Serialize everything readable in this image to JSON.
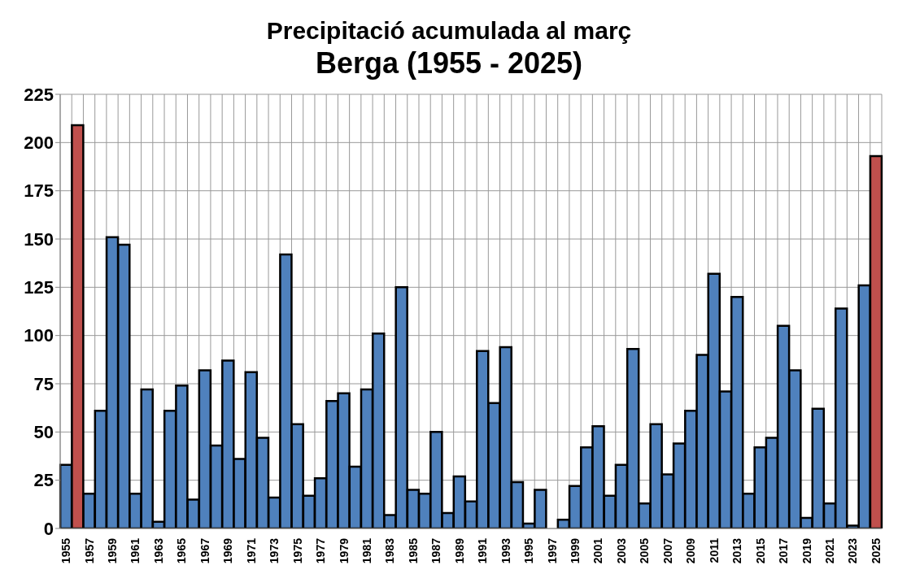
{
  "chart_data": {
    "type": "bar",
    "title": "Precipitació acumulada al març",
    "subtitle": "Berga (1955 - 2025)",
    "categories": [
      "1955",
      null,
      "1957",
      null,
      "1959",
      null,
      "1961",
      null,
      "1963",
      null,
      "1965",
      null,
      "1967",
      null,
      "1969",
      null,
      "1971",
      null,
      "1973",
      null,
      "1975",
      null,
      "1977",
      null,
      "1979",
      null,
      "1981",
      null,
      "1983",
      null,
      "1985",
      null,
      "1987",
      null,
      "1989",
      null,
      "1991",
      null,
      "1993",
      null,
      "1995",
      null,
      "1997",
      null,
      "1999",
      null,
      "2001",
      null,
      "2003",
      null,
      "2005",
      null,
      "2007",
      null,
      "2009",
      null,
      "2011",
      null,
      "2013",
      null,
      "2015",
      null,
      "2017",
      null,
      "2019",
      null,
      "2021",
      null,
      "2023",
      null,
      "2025"
    ],
    "values": [
      33,
      209,
      18,
      61,
      151,
      147,
      18,
      72,
      3.5,
      61,
      74,
      15,
      82,
      43,
      87,
      36,
      81,
      47,
      16,
      142,
      54,
      17,
      26,
      66,
      70,
      32,
      72,
      101,
      7,
      125,
      20,
      18,
      50,
      8,
      27,
      14,
      92,
      65,
      94,
      24,
      2.5,
      20,
      0,
      4.5,
      22,
      42,
      53,
      17,
      33,
      93,
      13,
      54,
      28,
      44,
      61,
      90,
      132,
      71,
      120,
      18,
      42,
      47,
      105,
      82,
      5.5,
      62,
      13,
      114,
      1.5,
      126,
      193
    ],
    "colors": [
      "#4f81bd",
      "#c0504d",
      "#4f81bd",
      "#4f81bd",
      "#4f81bd",
      "#4f81bd",
      "#4f81bd",
      "#4f81bd",
      "#4f81bd",
      "#4f81bd",
      "#4f81bd",
      "#4f81bd",
      "#4f81bd",
      "#4f81bd",
      "#4f81bd",
      "#4f81bd",
      "#4f81bd",
      "#4f81bd",
      "#4f81bd",
      "#4f81bd",
      "#4f81bd",
      "#4f81bd",
      "#4f81bd",
      "#4f81bd",
      "#4f81bd",
      "#4f81bd",
      "#4f81bd",
      "#4f81bd",
      "#4f81bd",
      "#4f81bd",
      "#4f81bd",
      "#4f81bd",
      "#4f81bd",
      "#4f81bd",
      "#4f81bd",
      "#4f81bd",
      "#4f81bd",
      "#4f81bd",
      "#4f81bd",
      "#4f81bd",
      "#4f81bd",
      "#4f81bd",
      "#4f81bd",
      "#4f81bd",
      "#4f81bd",
      "#4f81bd",
      "#4f81bd",
      "#4f81bd",
      "#4f81bd",
      "#4f81bd",
      "#4f81bd",
      "#4f81bd",
      "#4f81bd",
      "#4f81bd",
      "#4f81bd",
      "#4f81bd",
      "#4f81bd",
      "#4f81bd",
      "#4f81bd",
      "#4f81bd",
      "#4f81bd",
      "#4f81bd",
      "#4f81bd",
      "#4f81bd",
      "#4f81bd",
      "#4f81bd",
      "#4f81bd",
      "#4f81bd",
      "#4f81bd",
      "#4f81bd",
      "#c0504d"
    ],
    "ylim": [
      0,
      225
    ],
    "yticks": [
      0,
      25,
      50,
      75,
      100,
      125,
      150,
      175,
      200,
      225
    ],
    "grid": true
  }
}
